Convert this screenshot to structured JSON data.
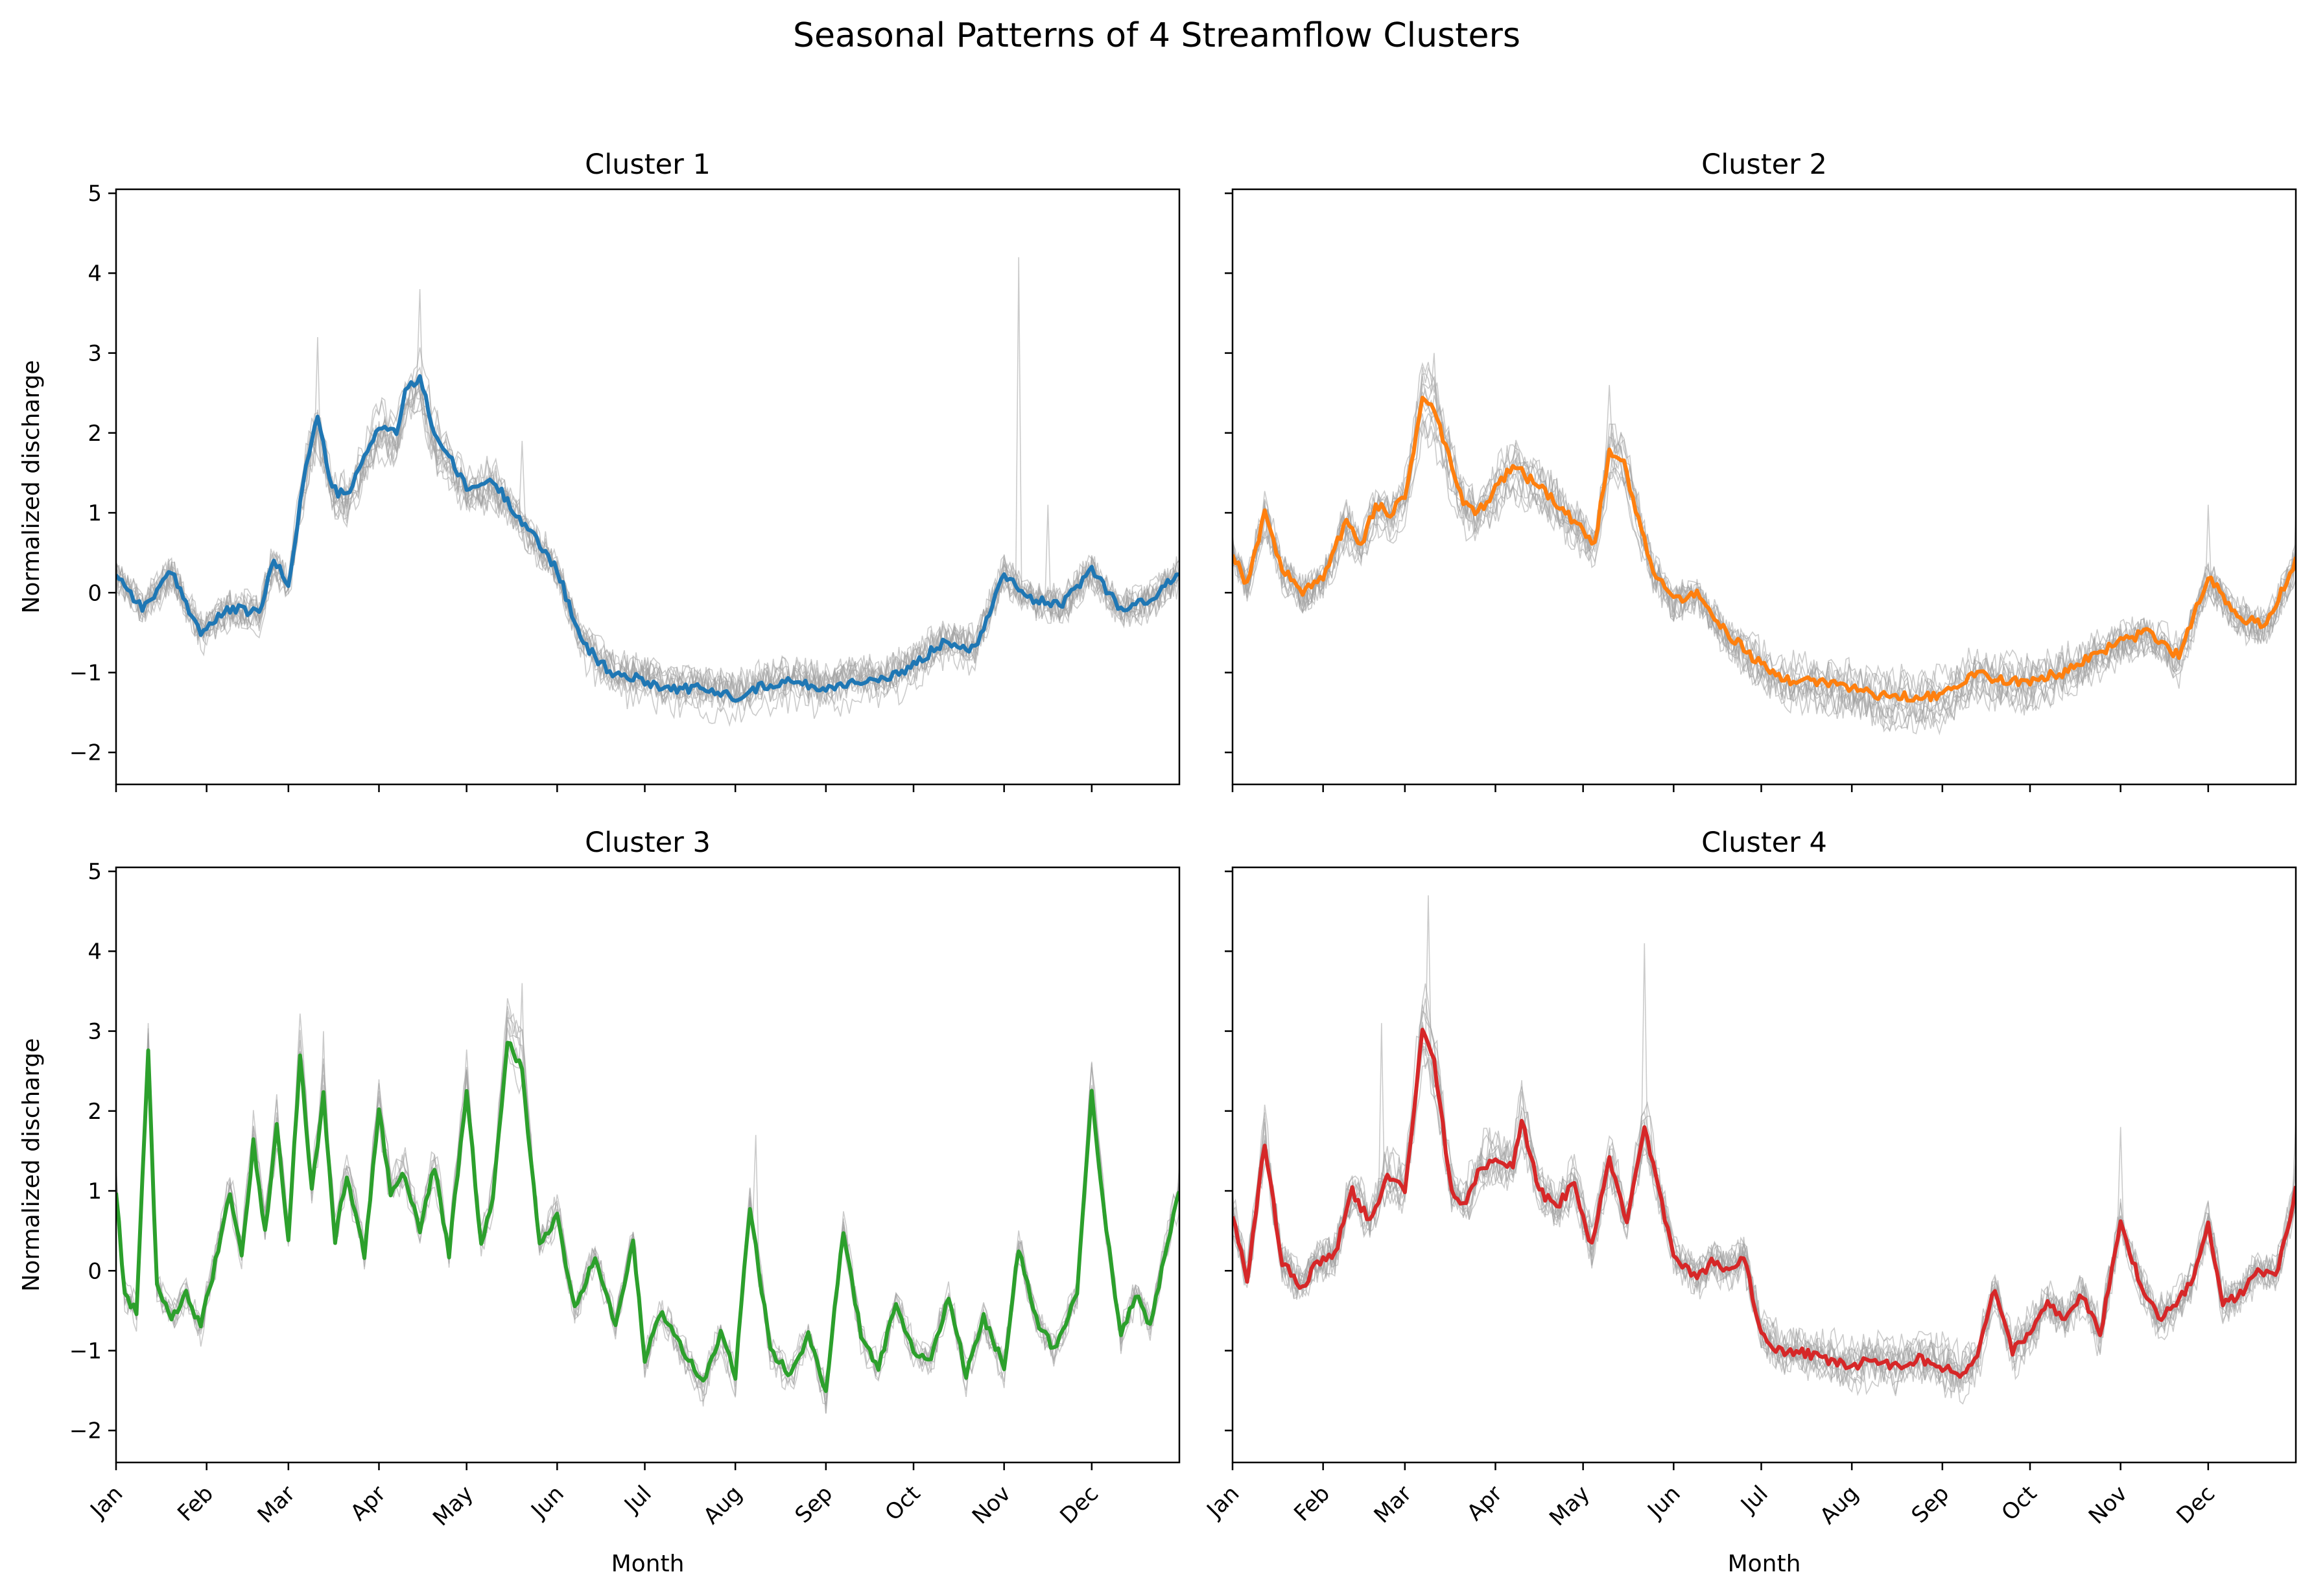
{
  "figure": {
    "title": "Seasonal Patterns of 4 Streamflow Clusters"
  },
  "chart_data": [
    {
      "type": "line",
      "title": "Cluster 1",
      "xlabel": "",
      "ylabel": "Normalized discharge",
      "x_range_days": [
        1,
        365
      ],
      "ylim": [
        -2.4,
        5.05
      ],
      "yticks": [
        -2,
        -1,
        0,
        1,
        2,
        3,
        4,
        5
      ],
      "month_ticks": [
        "Jan",
        "Feb",
        "Mar",
        "Apr",
        "May",
        "Jun",
        "Jul",
        "Aug",
        "Sep",
        "Oct",
        "Nov",
        "Dec"
      ],
      "month_tick_days": [
        1,
        32,
        60,
        91,
        121,
        152,
        182,
        213,
        244,
        274,
        305,
        335
      ],
      "show_xtick_labels": false,
      "show_ytick_labels": true,
      "grid": false,
      "mean_color": "#1f77b4",
      "member_color": "#a0a0a0",
      "mean_series": {
        "day": [
          1,
          10,
          20,
          30,
          40,
          50,
          55,
          60,
          66,
          70,
          75,
          80,
          85,
          91,
          97,
          100,
          105,
          110,
          115,
          121,
          130,
          140,
          152,
          160,
          170,
          182,
          190,
          200,
          213,
          220,
          230,
          244,
          255,
          265,
          274,
          285,
          295,
          305,
          315,
          325,
          335,
          345,
          355,
          365
        ],
        "value": [
          0.25,
          -0.2,
          0.25,
          -0.5,
          -0.2,
          -0.25,
          0.4,
          0.1,
          1.6,
          2.2,
          1.3,
          1.2,
          1.6,
          2.1,
          2.0,
          2.5,
          2.7,
          2.0,
          1.7,
          1.3,
          1.4,
          0.9,
          0.3,
          -0.6,
          -1.0,
          -1.1,
          -1.2,
          -1.2,
          -1.3,
          -1.2,
          -1.1,
          -1.2,
          -1.1,
          -1.1,
          -0.9,
          -0.6,
          -0.7,
          0.25,
          -0.1,
          -0.15,
          0.3,
          -0.2,
          -0.1,
          0.25
        ]
      },
      "member_count": 12,
      "member_spikes": [
        {
          "day": 105,
          "value": 3.8
        },
        {
          "day": 70,
          "value": 3.2
        },
        {
          "day": 310,
          "value": 4.2
        },
        {
          "day": 320,
          "value": 1.1
        },
        {
          "day": 140,
          "value": 1.9
        }
      ]
    },
    {
      "type": "line",
      "title": "Cluster 2",
      "xlabel": "",
      "ylabel": "",
      "x_range_days": [
        1,
        365
      ],
      "ylim": [
        -2.4,
        5.05
      ],
      "yticks": [
        -2,
        -1,
        0,
        1,
        2,
        3,
        4,
        5
      ],
      "month_ticks": [
        "Jan",
        "Feb",
        "Mar",
        "Apr",
        "May",
        "Jun",
        "Jul",
        "Aug",
        "Sep",
        "Oct",
        "Nov",
        "Dec"
      ],
      "month_tick_days": [
        1,
        32,
        60,
        91,
        121,
        152,
        182,
        213,
        244,
        274,
        305,
        335
      ],
      "show_xtick_labels": false,
      "show_ytick_labels": false,
      "grid": false,
      "mean_color": "#ff7f0e",
      "member_color": "#a0a0a0",
      "mean_series": {
        "day": [
          1,
          6,
          12,
          18,
          25,
          32,
          40,
          45,
          50,
          55,
          60,
          66,
          70,
          75,
          80,
          85,
          91,
          97,
          100,
          110,
          115,
          120,
          125,
          130,
          135,
          140,
          145,
          152,
          160,
          170,
          182,
          190,
          200,
          213,
          225,
          235,
          244,
          255,
          265,
          274,
          285,
          295,
          305,
          315,
          325,
          335,
          345,
          355,
          365
        ],
        "value": [
          0.5,
          0.1,
          1.0,
          0.3,
          0.0,
          0.2,
          0.9,
          0.6,
          1.1,
          1.0,
          1.2,
          2.4,
          2.3,
          1.7,
          1.1,
          1.0,
          1.3,
          1.6,
          1.5,
          1.2,
          1.0,
          0.8,
          0.6,
          1.8,
          1.6,
          0.9,
          0.3,
          -0.1,
          0.0,
          -0.5,
          -0.9,
          -1.1,
          -1.1,
          -1.2,
          -1.3,
          -1.3,
          -1.3,
          -1.0,
          -1.1,
          -1.1,
          -1.0,
          -0.8,
          -0.6,
          -0.5,
          -0.8,
          0.2,
          -0.3,
          -0.4,
          0.4
        ]
      },
      "member_count": 12,
      "member_spikes": [
        {
          "day": 70,
          "value": 3.0
        },
        {
          "day": 130,
          "value": 2.6
        },
        {
          "day": 335,
          "value": 1.1
        },
        {
          "day": 365,
          "value": 1.0
        }
      ]
    },
    {
      "type": "line",
      "title": "Cluster 3",
      "xlabel": "Month",
      "ylabel": "Normalized discharge",
      "x_range_days": [
        1,
        365
      ],
      "ylim": [
        -2.4,
        5.05
      ],
      "yticks": [
        -2,
        -1,
        0,
        1,
        2,
        3,
        4,
        5
      ],
      "month_ticks": [
        "Jan",
        "Feb",
        "Mar",
        "Apr",
        "May",
        "Jun",
        "Jul",
        "Aug",
        "Sep",
        "Oct",
        "Nov",
        "Dec"
      ],
      "month_tick_days": [
        1,
        32,
        60,
        91,
        121,
        152,
        182,
        213,
        244,
        274,
        305,
        335
      ],
      "show_xtick_labels": true,
      "show_ytick_labels": true,
      "grid": false,
      "mean_color": "#2ca02c",
      "member_color": "#a0a0a0",
      "mean_series": {
        "day": [
          1,
          4,
          8,
          12,
          15,
          20,
          25,
          30,
          35,
          40,
          44,
          48,
          52,
          56,
          60,
          64,
          68,
          72,
          76,
          80,
          86,
          91,
          95,
          100,
          105,
          110,
          115,
          121,
          126,
          130,
          135,
          140,
          146,
          152,
          158,
          165,
          172,
          178,
          182,
          188,
          195,
          202,
          208,
          213,
          218,
          225,
          232,
          238,
          244,
          250,
          256,
          262,
          268,
          274,
          280,
          286,
          292,
          298,
          305,
          310,
          316,
          322,
          330,
          335,
          340,
          345,
          350,
          355,
          360,
          365
        ],
        "value": [
          1.0,
          -0.3,
          -0.5,
          2.7,
          -0.2,
          -0.6,
          -0.3,
          -0.7,
          0.1,
          1.0,
          0.2,
          1.6,
          0.5,
          1.8,
          0.4,
          2.7,
          1.0,
          2.2,
          0.4,
          1.2,
          0.2,
          2.0,
          1.0,
          1.2,
          0.5,
          1.3,
          0.2,
          2.3,
          0.3,
          0.9,
          2.9,
          2.5,
          0.3,
          0.7,
          -0.5,
          0.2,
          -0.7,
          0.4,
          -1.1,
          -0.5,
          -1.0,
          -1.4,
          -0.8,
          -1.3,
          0.8,
          -1.0,
          -1.3,
          -0.8,
          -1.5,
          0.5,
          -0.8,
          -1.2,
          -0.4,
          -1.0,
          -1.1,
          -0.3,
          -1.3,
          -0.6,
          -1.2,
          0.3,
          -0.6,
          -1.0,
          -0.3,
          2.2,
          0.5,
          -0.8,
          -0.3,
          -0.7,
          0.2,
          1.0
        ]
      },
      "member_count": 8,
      "member_spikes": [
        {
          "day": 140,
          "value": 3.6
        },
        {
          "day": 12,
          "value": 3.1
        },
        {
          "day": 72,
          "value": 3.0
        },
        {
          "day": 220,
          "value": 1.7
        },
        {
          "day": 335,
          "value": 2.6
        }
      ]
    },
    {
      "type": "line",
      "title": "Cluster 4",
      "xlabel": "Month",
      "ylabel": "",
      "x_range_days": [
        1,
        365
      ],
      "ylim": [
        -2.4,
        5.05
      ],
      "yticks": [
        -2,
        -1,
        0,
        1,
        2,
        3,
        4,
        5
      ],
      "month_ticks": [
        "Jan",
        "Feb",
        "Mar",
        "Apr",
        "May",
        "Jun",
        "Jul",
        "Aug",
        "Sep",
        "Oct",
        "Nov",
        "Dec"
      ],
      "month_tick_days": [
        1,
        32,
        60,
        91,
        121,
        152,
        182,
        213,
        244,
        274,
        305,
        335
      ],
      "show_xtick_labels": true,
      "show_ytick_labels": false,
      "grid": false,
      "mean_color": "#d62728",
      "member_color": "#a0a0a0",
      "mean_series": {
        "day": [
          1,
          6,
          12,
          18,
          25,
          30,
          36,
          42,
          48,
          54,
          60,
          66,
          70,
          76,
          80,
          86,
          91,
          97,
          100,
          106,
          112,
          118,
          124,
          130,
          136,
          142,
          152,
          160,
          165,
          170,
          176,
          182,
          188,
          195,
          202,
          213,
          220,
          228,
          236,
          244,
          250,
          256,
          262,
          268,
          274,
          280,
          286,
          292,
          298,
          305,
          312,
          318,
          324,
          330,
          335,
          340,
          346,
          352,
          358,
          365
        ],
        "value": [
          0.7,
          -0.1,
          1.6,
          0.1,
          -0.2,
          0.1,
          0.2,
          1.0,
          0.6,
          1.2,
          1.0,
          3.0,
          2.6,
          1.0,
          0.8,
          1.3,
          1.4,
          1.3,
          1.9,
          1.0,
          0.8,
          1.1,
          0.3,
          1.4,
          0.6,
          1.8,
          0.2,
          -0.1,
          0.1,
          0.0,
          0.2,
          -0.8,
          -1.0,
          -1.0,
          -1.1,
          -1.2,
          -1.1,
          -1.2,
          -1.1,
          -1.2,
          -1.3,
          -1.1,
          -0.2,
          -1.0,
          -0.8,
          -0.4,
          -0.6,
          -0.3,
          -0.8,
          0.6,
          -0.2,
          -0.6,
          -0.4,
          -0.1,
          0.6,
          -0.4,
          -0.3,
          0.0,
          -0.1,
          1.0
        ]
      },
      "member_count": 12,
      "member_spikes": [
        {
          "day": 68,
          "value": 4.7
        },
        {
          "day": 142,
          "value": 4.1
        },
        {
          "day": 52,
          "value": 3.1
        },
        {
          "day": 305,
          "value": 1.8
        },
        {
          "day": 365,
          "value": 1.9
        }
      ]
    }
  ]
}
